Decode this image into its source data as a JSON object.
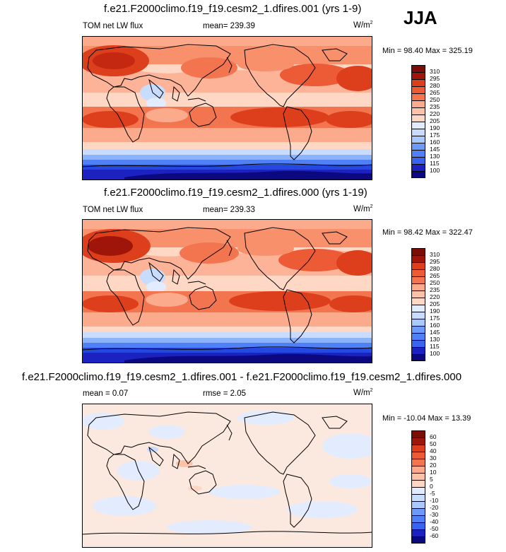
{
  "season": "JJA",
  "colors": {
    "abs_scale": [
      "#0b0880",
      "#1b22c0",
      "#2548e0",
      "#3a64f0",
      "#5080f5",
      "#6b9af8",
      "#8bb3fb",
      "#a9c9fd",
      "#c7dcfe",
      "#e3ecfe",
      "#fbe9df",
      "#fed7c5",
      "#fcc2a8",
      "#fbaa8b",
      "#f8906c",
      "#f37550",
      "#ec5a36",
      "#dd3f1d",
      "#c52810",
      "#a0150a",
      "#7a0e06"
    ],
    "diff_scale": [
      "#0b0880",
      "#1b22c0",
      "#2548e0",
      "#3a64f0",
      "#5080f5",
      "#6b9af8",
      "#8bb3fb",
      "#a9c9fd",
      "#c7dcfe",
      "#e3ecfe",
      "#fbe9df",
      "#fed7c5",
      "#fcc2a8",
      "#fbaa8b",
      "#f8906c",
      "#f37550",
      "#ec5a36",
      "#dd3f1d",
      "#c52810",
      "#a0150a",
      "#7a0e06"
    ],
    "coast": "#000000"
  },
  "panels": [
    {
      "title": "f.e21.F2000climo.f19_f19.cesm2_1.dfires.001 (yrs 1-9)",
      "left_label": "TOM net LW flux",
      "center_label": "mean= 239.39",
      "units": "W/m",
      "units_exp": "2",
      "minmax": "Min =  98.40 Max = 325.19",
      "levels": [
        "310",
        "295",
        "280",
        "265",
        "250",
        "235",
        "220",
        "205",
        "190",
        "175",
        "160",
        "145",
        "130",
        "115",
        "100"
      ]
    },
    {
      "title": "f.e21.F2000climo.f19_f19.cesm2_1.dfires.000 (yrs 1-19)",
      "left_label": "TOM net LW flux",
      "center_label": "mean= 239.33",
      "units": "W/m",
      "units_exp": "2",
      "minmax": "Min =  98.42 Max = 322.47",
      "levels": [
        "310",
        "295",
        "280",
        "265",
        "250",
        "235",
        "220",
        "205",
        "190",
        "175",
        "160",
        "145",
        "130",
        "115",
        "100"
      ]
    },
    {
      "title": "f.e21.F2000climo.f19_f19.cesm2_1.dfires.001 - f.e21.F2000climo.f19_f19.cesm2_1.dfires.000",
      "left_label": "mean =   0.07",
      "center_label": "rmse =   2.05",
      "units": "W/m",
      "units_exp": "2",
      "minmax": "Min = -10.04 Max =  13.39",
      "levels": [
        "60",
        "50",
        "40",
        "30",
        "20",
        "10",
        "5",
        "0",
        "-5",
        "-10",
        "-20",
        "-30",
        "-40",
        "-50",
        "-60"
      ]
    }
  ]
}
